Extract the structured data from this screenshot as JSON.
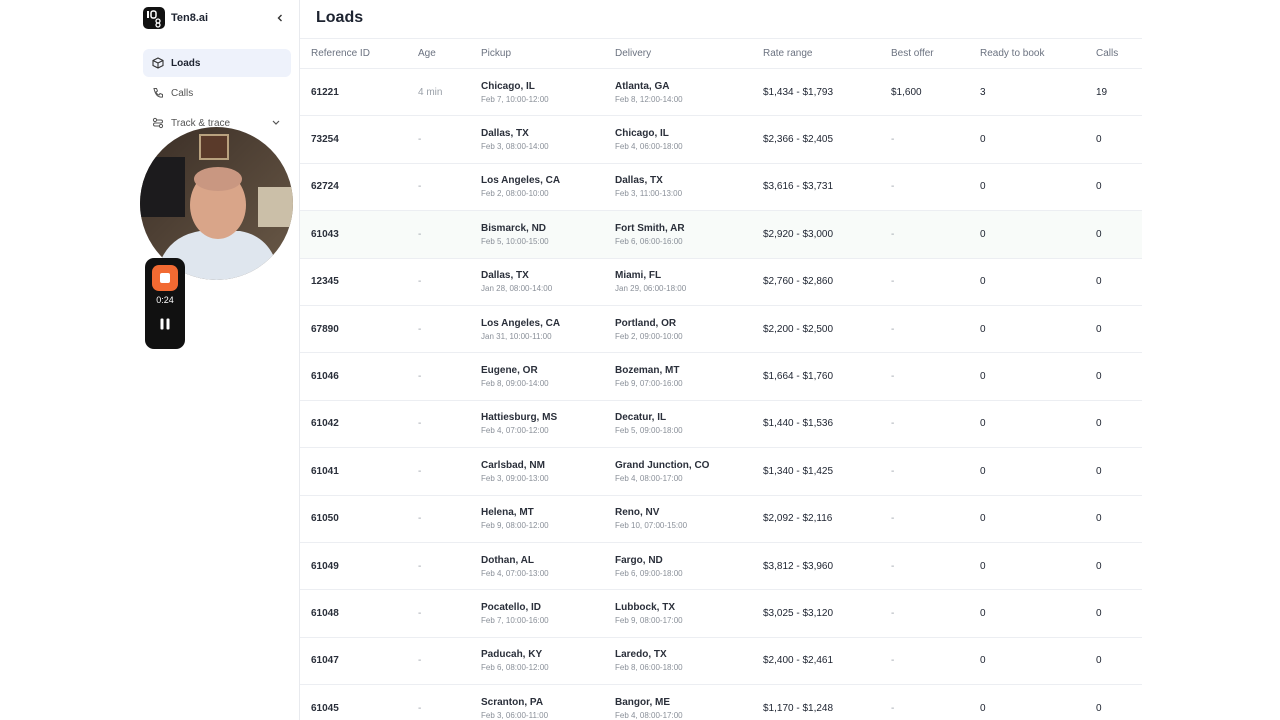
{
  "sidebar": {
    "brand": "Ten8.ai",
    "nav": [
      "Loads",
      "Calls",
      "Track & trace"
    ]
  },
  "recorder": {
    "time": "0:24"
  },
  "header": {
    "title": "Loads"
  },
  "table": {
    "columns": [
      "Reference ID",
      "Age",
      "Pickup",
      "Delivery",
      "Rate range",
      "Best offer",
      "Ready to book",
      "Calls"
    ],
    "rows": [
      [
        "61221",
        "4 min",
        "Chicago, IL",
        "Feb 7, 10:00-12:00",
        "Atlanta, GA",
        "Feb 8, 12:00-14:00",
        "$1,434 - $1,793",
        "$1,600",
        "3",
        "19"
      ],
      [
        "73254",
        "-",
        "Dallas, TX",
        "Feb 3, 08:00-14:00",
        "Chicago, IL",
        "Feb 4, 06:00-18:00",
        "$2,366 - $2,405",
        "-",
        "0",
        "0"
      ],
      [
        "62724",
        "-",
        "Los Angeles, CA",
        "Feb 2, 08:00-10:00",
        "Dallas, TX",
        "Feb 3, 11:00-13:00",
        "$3,616 - $3,731",
        "-",
        "0",
        "0"
      ],
      [
        "61043",
        "-",
        "Bismarck, ND",
        "Feb 5, 10:00-15:00",
        "Fort Smith, AR",
        "Feb 6, 06:00-16:00",
        "$2,920 - $3,000",
        "-",
        "0",
        "0"
      ],
      [
        "12345",
        "-",
        "Dallas, TX",
        "Jan 28, 08:00-14:00",
        "Miami, FL",
        "Jan 29, 06:00-18:00",
        "$2,760 - $2,860",
        "-",
        "0",
        "0"
      ],
      [
        "67890",
        "-",
        "Los Angeles, CA",
        "Jan 31, 10:00-11:00",
        "Portland, OR",
        "Feb 2, 09:00-10:00",
        "$2,200 - $2,500",
        "-",
        "0",
        "0"
      ],
      [
        "61046",
        "-",
        "Eugene, OR",
        "Feb 8, 09:00-14:00",
        "Bozeman, MT",
        "Feb 9, 07:00-16:00",
        "$1,664 - $1,760",
        "-",
        "0",
        "0"
      ],
      [
        "61042",
        "-",
        "Hattiesburg, MS",
        "Feb 4, 07:00-12:00",
        "Decatur, IL",
        "Feb 5, 09:00-18:00",
        "$1,440 - $1,536",
        "-",
        "0",
        "0"
      ],
      [
        "61041",
        "-",
        "Carlsbad, NM",
        "Feb 3, 09:00-13:00",
        "Grand Junction, CO",
        "Feb 4, 08:00-17:00",
        "$1,340 - $1,425",
        "-",
        "0",
        "0"
      ],
      [
        "61050",
        "-",
        "Helena, MT",
        "Feb 9, 08:00-12:00",
        "Reno, NV",
        "Feb 10, 07:00-15:00",
        "$2,092 - $2,116",
        "-",
        "0",
        "0"
      ],
      [
        "61049",
        "-",
        "Dothan, AL",
        "Feb 4, 07:00-13:00",
        "Fargo, ND",
        "Feb 6, 09:00-18:00",
        "$3,812 - $3,960",
        "-",
        "0",
        "0"
      ],
      [
        "61048",
        "-",
        "Pocatello, ID",
        "Feb 7, 10:00-16:00",
        "Lubbock, TX",
        "Feb 9, 08:00-17:00",
        "$3,025 - $3,120",
        "-",
        "0",
        "0"
      ],
      [
        "61047",
        "-",
        "Paducah, KY",
        "Feb 6, 08:00-12:00",
        "Laredo, TX",
        "Feb 8, 06:00-18:00",
        "$2,400 - $2,461",
        "-",
        "0",
        "0"
      ],
      [
        "61045",
        "-",
        "Scranton, PA",
        "Feb 3, 06:00-11:00",
        "Bangor, ME",
        "Feb 4, 08:00-17:00",
        "$1,170 - $1,248",
        "-",
        "0",
        "0"
      ]
    ]
  }
}
